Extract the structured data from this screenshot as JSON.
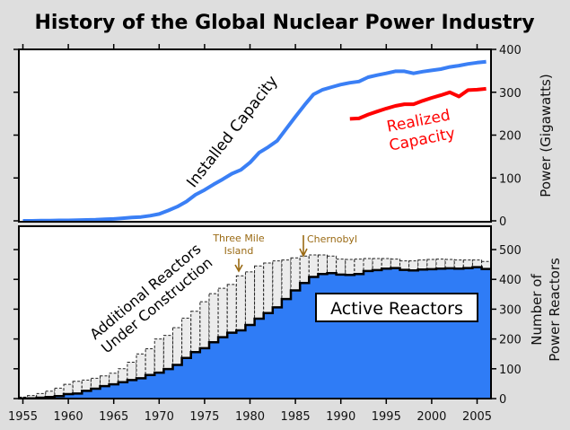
{
  "title": "History of the Global Nuclear Power Industry",
  "colors": {
    "background": "#dedede",
    "installed": "#3a7ff5",
    "realized": "#ff0000",
    "active_fill": "#2f7cf6",
    "construction_fill": "#ececec",
    "event": "#9a6a14"
  },
  "chart_data": [
    {
      "type": "line",
      "ylabel": "Power (Gigawatts)",
      "ylim": [
        0,
        400
      ],
      "yticks": [
        "0",
        "100",
        "200",
        "300",
        "400"
      ],
      "xlim": [
        1954.5,
        2006.5
      ],
      "series": [
        {
          "name": "Installed Capacity",
          "x": [
            1955,
            1956,
            1957,
            1958,
            1959,
            1960,
            1961,
            1962,
            1963,
            1964,
            1965,
            1966,
            1967,
            1968,
            1969,
            1970,
            1971,
            1972,
            1973,
            1974,
            1975,
            1976,
            1977,
            1978,
            1979,
            1980,
            1981,
            1982,
            1983,
            1984,
            1985,
            1986,
            1987,
            1988,
            1989,
            1990,
            1991,
            1992,
            1993,
            1994,
            1995,
            1996,
            1997,
            1998,
            1999,
            2000,
            2001,
            2002,
            2003,
            2004,
            2005,
            2006
          ],
          "values": [
            0,
            0,
            0.5,
            0.5,
            1,
            1,
            1.5,
            2,
            2.5,
            3.5,
            4.5,
            6,
            8,
            9,
            12,
            16,
            24,
            33,
            45,
            61,
            72,
            85,
            97,
            110,
            119,
            136,
            159,
            172,
            187,
            215,
            243,
            270,
            295,
            306,
            312,
            318,
            322,
            325,
            335,
            340,
            344,
            349,
            349,
            344,
            348,
            351,
            354,
            359,
            362,
            366,
            369,
            371
          ]
        },
        {
          "name": "Realized Capacity",
          "label_lines": [
            "Realized",
            "Capacity"
          ],
          "x": [
            1991,
            1992,
            1993,
            1994,
            1995,
            1996,
            1997,
            1998,
            1999,
            2000,
            2001,
            2002,
            2003,
            2004,
            2005,
            2006
          ],
          "values": [
            238,
            239,
            248,
            255,
            262,
            268,
            272,
            272,
            280,
            287,
            293,
            300,
            290,
            305,
            306,
            308
          ]
        }
      ]
    },
    {
      "type": "area",
      "stepped": true,
      "ylabel_lines": [
        "Number of",
        "Power Reactors"
      ],
      "ylim": [
        0,
        580
      ],
      "yticks": [
        "0",
        "100",
        "200",
        "300",
        "400",
        "500"
      ],
      "xticks": [
        "1955",
        "1960",
        "1965",
        "1970",
        "1975",
        "1980",
        "1985",
        "1990",
        "1995",
        "2000",
        "2005"
      ],
      "x": [
        1955,
        1956,
        1957,
        1958,
        1959,
        1960,
        1961,
        1962,
        1963,
        1964,
        1965,
        1966,
        1967,
        1968,
        1969,
        1970,
        1971,
        1972,
        1973,
        1974,
        1975,
        1976,
        1977,
        1978,
        1979,
        1980,
        1981,
        1982,
        1983,
        1984,
        1985,
        1986,
        1987,
        1988,
        1989,
        1990,
        1991,
        1992,
        1993,
        1994,
        1995,
        1996,
        1997,
        1998,
        1999,
        2000,
        2001,
        2002,
        2003,
        2004,
        2005,
        2006
      ],
      "series": [
        {
          "name": "Active Reactors",
          "values": [
            1,
            1,
            3,
            5,
            8,
            15,
            17,
            26,
            33,
            42,
            48,
            55,
            62,
            68,
            79,
            87,
            99,
            113,
            136,
            156,
            169,
            189,
            206,
            221,
            229,
            247,
            268,
            287,
            306,
            334,
            363,
            388,
            408,
            418,
            421,
            416,
            415,
            418,
            428,
            431,
            436,
            438,
            432,
            430,
            433,
            434,
            436,
            437,
            436,
            438,
            441,
            435
          ]
        },
        {
          "name": "Additional Reactors Under Construction",
          "label_lines": [
            "Additional Reactors",
            "Under Construction"
          ],
          "total_values": [
            5,
            10,
            17,
            25,
            35,
            48,
            58,
            62,
            68,
            76,
            85,
            100,
            122,
            150,
            167,
            200,
            212,
            238,
            270,
            293,
            325,
            352,
            370,
            383,
            412,
            425,
            445,
            455,
            462,
            465,
            472,
            478,
            482,
            482,
            478,
            468,
            467,
            468,
            470,
            470,
            470,
            468,
            462,
            462,
            465,
            467,
            468,
            467,
            465,
            465,
            465,
            460
          ]
        }
      ],
      "annotations": [
        {
          "label_lines": [
            "Three Mile",
            "Island"
          ],
          "year": 1979
        },
        {
          "label_lines": [
            "Chernobyl"
          ],
          "year": 1986
        }
      ]
    }
  ]
}
